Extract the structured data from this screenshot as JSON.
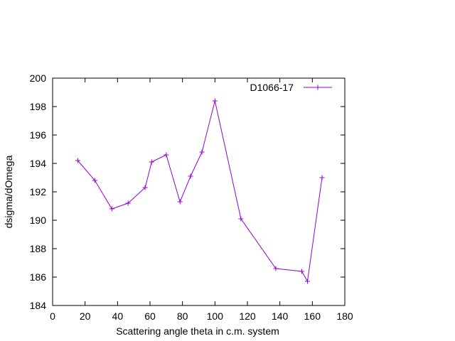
{
  "chart_data": {
    "type": "line",
    "title": "",
    "xlabel": "Scattering angle theta in c.m. system",
    "ylabel": "dsigma/dOmega",
    "xlim": [
      0,
      180
    ],
    "ylim": [
      184,
      200
    ],
    "x_ticks": [
      0,
      20,
      40,
      60,
      80,
      100,
      120,
      140,
      160,
      180
    ],
    "y_ticks": [
      184,
      186,
      188,
      190,
      192,
      194,
      196,
      198,
      200
    ],
    "grid": false,
    "legend_position": "top-right",
    "series": [
      {
        "name": "D1066-17",
        "color": "#9400d3",
        "marker": "plus",
        "x": [
          15.5,
          26.0,
          36.5,
          46.5,
          57.0,
          61.0,
          70.0,
          78.5,
          85.0,
          92.0,
          100.0,
          116.0,
          137.5,
          153.5,
          157.0,
          166.0
        ],
        "y": [
          194.2,
          192.8,
          190.8,
          191.2,
          192.3,
          194.1,
          194.6,
          191.3,
          193.1,
          194.8,
          198.4,
          190.1,
          186.6,
          186.4,
          185.7,
          193.0
        ]
      }
    ]
  }
}
